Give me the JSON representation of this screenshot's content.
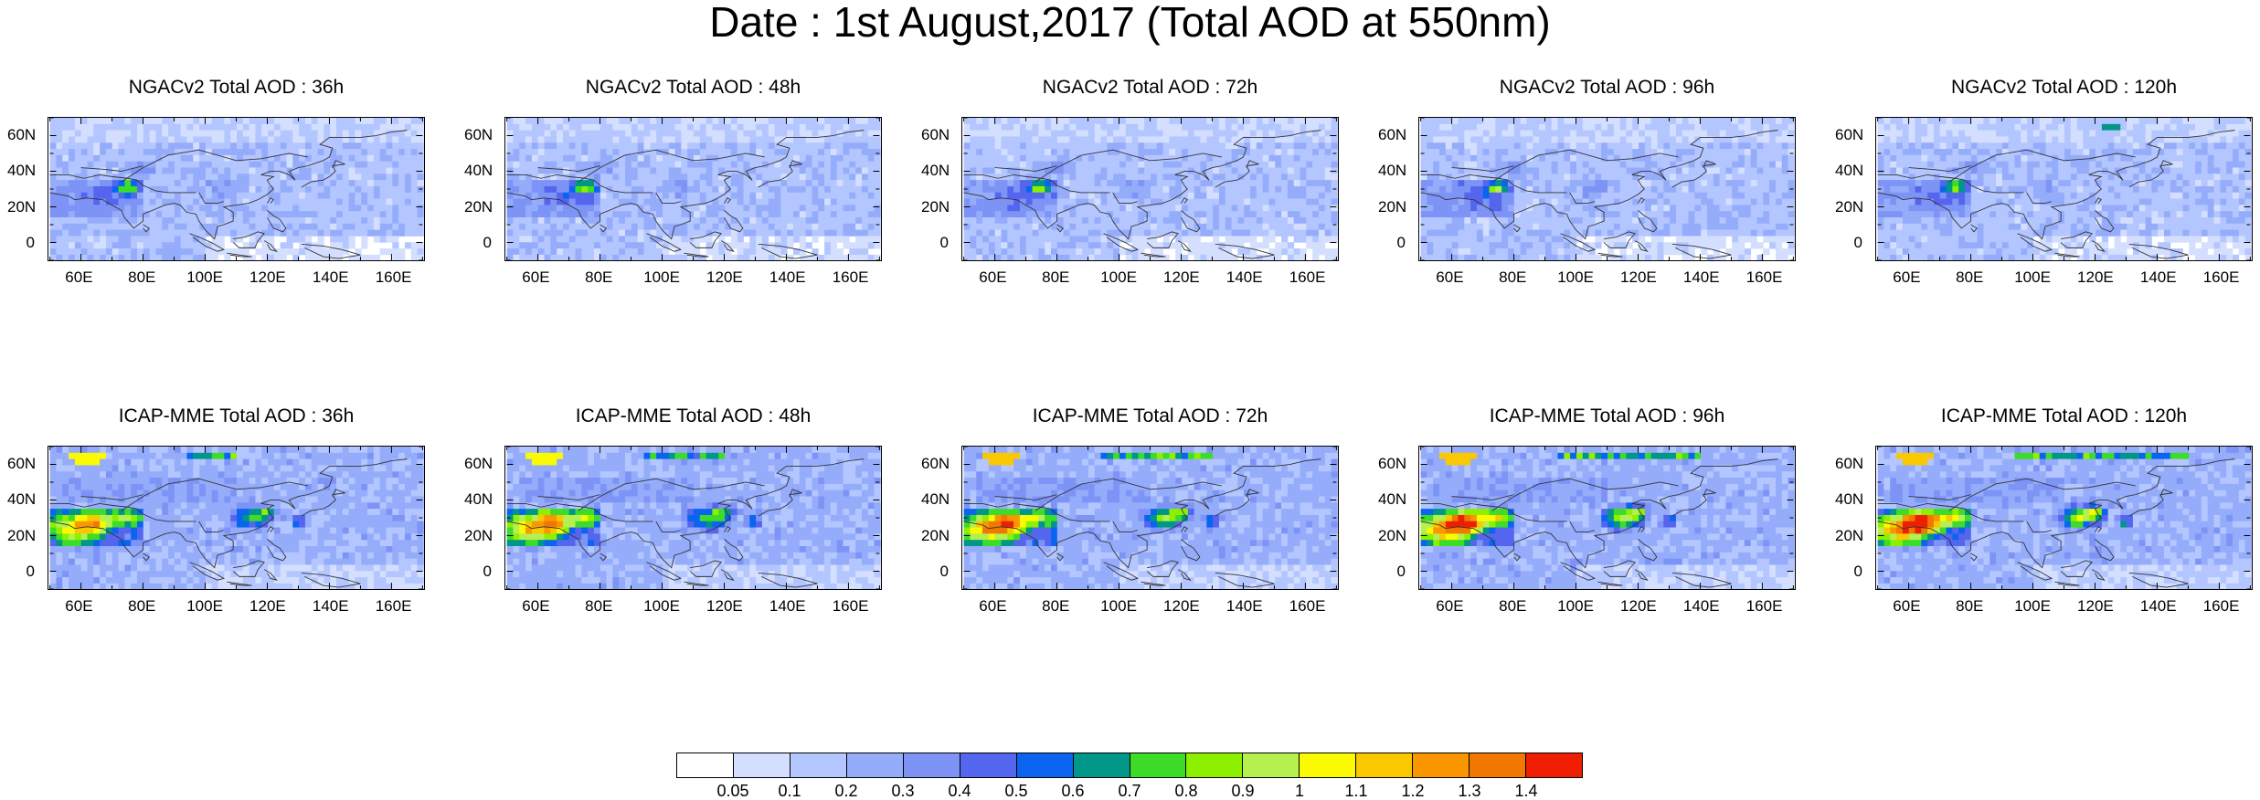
{
  "title": "Date : 1st August,2017 (Total AOD at 550nm)",
  "panels": [
    {
      "title": "NGACv2 Total AOD : 36h",
      "model": "NGACv2",
      "lead": "36h"
    },
    {
      "title": "NGACv2 Total AOD : 48h",
      "model": "NGACv2",
      "lead": "48h"
    },
    {
      "title": "NGACv2 Total AOD : 72h",
      "model": "NGACv2",
      "lead": "72h"
    },
    {
      "title": "NGACv2 Total AOD : 96h",
      "model": "NGACv2",
      "lead": "96h"
    },
    {
      "title": "NGACv2 Total AOD : 120h",
      "model": "NGACv2",
      "lead": "120h"
    },
    {
      "title": "ICAP-MME Total AOD : 36h",
      "model": "ICAP-MME",
      "lead": "36h"
    },
    {
      "title": "ICAP-MME Total AOD : 48h",
      "model": "ICAP-MME",
      "lead": "48h"
    },
    {
      "title": "ICAP-MME Total AOD : 72h",
      "model": "ICAP-MME",
      "lead": "72h"
    },
    {
      "title": "ICAP-MME Total AOD : 96h",
      "model": "ICAP-MME",
      "lead": "96h"
    },
    {
      "title": "ICAP-MME Total AOD : 120h",
      "model": "ICAP-MME",
      "lead": "120h"
    }
  ],
  "lat_labels": [
    "60N",
    "40N",
    "20N",
    "0"
  ],
  "lat_values": [
    60,
    40,
    20,
    0
  ],
  "lon_labels": [
    "60E",
    "80E",
    "100E",
    "120E",
    "140E",
    "160E"
  ],
  "lon_values": [
    60,
    80,
    100,
    120,
    140,
    160
  ],
  "lon_range": [
    50,
    170
  ],
  "lat_range": [
    -10,
    70
  ],
  "colorbar": {
    "labels": [
      "0.05",
      "0.1",
      "0.2",
      "0.3",
      "0.4",
      "0.5",
      "0.6",
      "0.7",
      "0.8",
      "0.9",
      "1",
      "1.1",
      "1.2",
      "1.3",
      "1.4"
    ],
    "colors": [
      "#ffffff",
      "#d4dfff",
      "#b4c6ff",
      "#95acfb",
      "#7d94f6",
      "#5566ee",
      "#0a64f0",
      "#009688",
      "#3cdc28",
      "#8cf000",
      "#b4f050",
      "#fafa00",
      "#fac800",
      "#fa9600",
      "#f07800",
      "#f01e00"
    ]
  }
}
